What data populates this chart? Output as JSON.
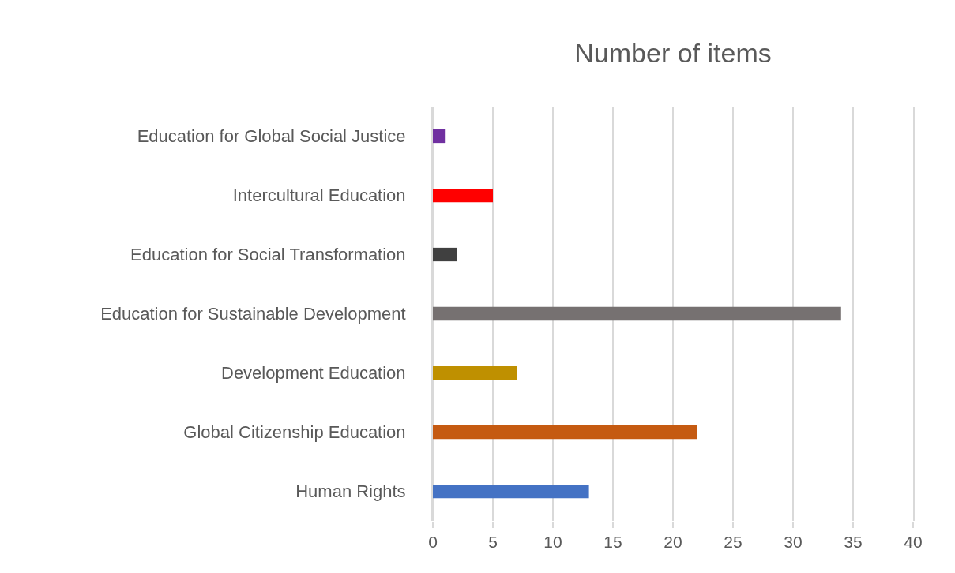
{
  "chart_data": {
    "type": "bar",
    "orientation": "horizontal",
    "title": "Number of items",
    "categories": [
      "Education for Global Social Justice",
      "Intercultural Education",
      "Education for Social Transformation",
      "Education for Sustainable Development",
      "Development Education",
      "Global Citizenship Education",
      "Human Rights"
    ],
    "values": [
      1,
      5,
      2,
      34,
      7,
      22,
      13
    ],
    "colors": [
      "#7030a0",
      "#ff0000",
      "#404040",
      "#767171",
      "#bf9000",
      "#c55a11",
      "#4472c4"
    ],
    "xlim": [
      0,
      40
    ],
    "xticks": [
      0,
      5,
      10,
      15,
      20,
      25,
      30,
      35,
      40
    ],
    "grid": "x"
  }
}
